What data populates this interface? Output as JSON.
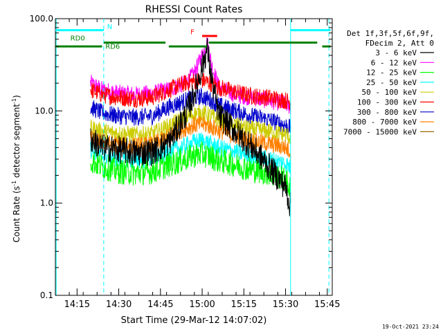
{
  "chart_data": {
    "type": "line",
    "title": "RHESSI Count Rates",
    "xlabel": "Start Time (29-Mar-12 14:07:02)",
    "ylabel_main": "Count Rate (s",
    "ylabel_sup1": "-1",
    "ylabel_mid": " detector segment",
    "ylabel_sup2": "-1",
    "ylabel_end": ")",
    "y_scale": "log",
    "ylim": [
      0.1,
      100
    ],
    "y_ticks": [
      {
        "value": 100,
        "label": "100.0"
      },
      {
        "value": 10,
        "label": "10.0"
      },
      {
        "value": 1,
        "label": "1.0"
      },
      {
        "value": 0.1,
        "label": "0.1"
      }
    ],
    "xlim_minutes": [
      14.12,
      15.78
    ],
    "x_ticks": [
      {
        "value": 14.25,
        "label": "14:15"
      },
      {
        "value": 14.5,
        "label": "14:30"
      },
      {
        "value": 14.75,
        "label": "14:45"
      },
      {
        "value": 15.0,
        "label": "15:00"
      },
      {
        "value": 15.25,
        "label": "15:15"
      },
      {
        "value": 15.5,
        "label": "15:30"
      },
      {
        "value": 15.75,
        "label": "15:45"
      }
    ],
    "legend_header_1": "Det 1f,3f,5f,6f,9f,",
    "legend_header_2": "FDecim 2, Att 0",
    "legend_placement": "right",
    "series": [
      {
        "name": "3 - 6 keV",
        "color": "#000000",
        "x": [
          14.33,
          14.4,
          14.5,
          14.6,
          14.7,
          14.8,
          14.9,
          14.95,
          15.0,
          15.03,
          15.06,
          15.1,
          15.2,
          15.3,
          15.4,
          15.5,
          15.53
        ],
        "y": [
          5.0,
          4.0,
          3.8,
          3.5,
          3.6,
          4.5,
          9.0,
          15.0,
          30.0,
          48.0,
          20.0,
          9.0,
          6.0,
          4.0,
          2.5,
          1.5,
          0.9
        ]
      },
      {
        "name": "6 - 12 keV",
        "color": "#ff00ff",
        "x": [
          14.33,
          14.4,
          14.5,
          14.6,
          14.7,
          14.8,
          14.9,
          14.95,
          15.0,
          15.03,
          15.06,
          15.1,
          15.2,
          15.3,
          15.4,
          15.5,
          15.53
        ],
        "y": [
          20.0,
          17.0,
          15.5,
          15.0,
          15.5,
          17.0,
          20.0,
          25.0,
          40.0,
          55.0,
          30.0,
          18.0,
          15.0,
          14.0,
          13.0,
          12.0,
          11.0
        ]
      },
      {
        "name": "12 - 25 keV",
        "color": "#00ff00",
        "x": [
          14.33,
          14.4,
          14.5,
          14.6,
          14.7,
          14.8,
          14.9,
          14.95,
          15.0,
          15.05,
          15.1,
          15.2,
          15.3,
          15.4,
          15.5,
          15.53
        ],
        "y": [
          2.9,
          2.5,
          2.2,
          2.1,
          2.2,
          2.6,
          3.0,
          3.3,
          3.4,
          3.2,
          2.9,
          2.6,
          2.3,
          2.1,
          1.8,
          1.4
        ]
      },
      {
        "name": "25 - 50 keV",
        "color": "#00ffff",
        "x": [
          14.33,
          14.4,
          14.5,
          14.6,
          14.7,
          14.8,
          14.9,
          14.95,
          15.0,
          15.05,
          15.1,
          15.2,
          15.3,
          15.4,
          15.5,
          15.53
        ],
        "y": [
          3.8,
          3.3,
          3.0,
          2.9,
          3.0,
          3.6,
          4.2,
          4.6,
          4.8,
          4.4,
          4.0,
          3.6,
          3.2,
          3.0,
          2.7,
          2.4
        ]
      },
      {
        "name": "50 - 100 keV",
        "color": "#cccc00",
        "x": [
          14.33,
          14.4,
          14.5,
          14.6,
          14.7,
          14.8,
          14.9,
          14.95,
          15.0,
          15.05,
          15.1,
          15.2,
          15.3,
          15.4,
          15.5,
          15.53
        ],
        "y": [
          6.5,
          6.0,
          5.7,
          5.5,
          5.6,
          6.8,
          8.5,
          9.2,
          9.5,
          8.8,
          8.0,
          7.0,
          6.3,
          6.0,
          5.5,
          5.2
        ]
      },
      {
        "name": "100 - 300 keV",
        "color": "#ff0000",
        "x": [
          14.33,
          14.4,
          14.5,
          14.6,
          14.7,
          14.8,
          14.9,
          14.95,
          15.0,
          15.05,
          15.1,
          15.2,
          15.3,
          15.4,
          15.5,
          15.53
        ],
        "y": [
          17.0,
          15.0,
          14.0,
          13.5,
          14.0,
          17.0,
          20.0,
          21.0,
          21.5,
          20.0,
          18.0,
          16.0,
          14.5,
          14.0,
          13.0,
          12.5
        ]
      },
      {
        "name": "300 - 800 keV",
        "color": "#0000cc",
        "x": [
          14.33,
          14.4,
          14.5,
          14.6,
          14.7,
          14.8,
          14.9,
          14.95,
          15.0,
          15.05,
          15.1,
          15.2,
          15.3,
          15.4,
          15.5,
          15.53
        ],
        "y": [
          11.0,
          9.5,
          8.8,
          8.5,
          8.8,
          11.0,
          13.0,
          14.0,
          14.3,
          13.0,
          11.5,
          10.0,
          8.8,
          8.0,
          7.0,
          6.5
        ]
      },
      {
        "name": "800 - 7000 keV",
        "color": "#ff8000",
        "x": [
          14.33,
          14.4,
          14.5,
          14.6,
          14.7,
          14.8,
          14.9,
          14.95,
          15.0,
          15.05,
          15.1,
          15.2,
          15.3,
          15.4,
          15.5,
          15.53
        ],
        "y": [
          5.0,
          4.5,
          4.3,
          4.2,
          4.3,
          5.3,
          6.5,
          7.0,
          7.2,
          6.8,
          6.1,
          5.3,
          4.7,
          4.4,
          4.0,
          3.6
        ]
      },
      {
        "name": "7000 - 15000 keV",
        "color": "#996600",
        "x": [],
        "y": []
      }
    ],
    "attenuator_segments": [
      {
        "y": 75,
        "color": "#00ffff",
        "x": [
          14.12,
          14.41
        ]
      },
      {
        "y": 75,
        "color": "#00ffff",
        "x": [
          15.53,
          15.77
        ]
      }
    ],
    "rd_segments": [
      {
        "y": 50,
        "color": "#008000",
        "x": [
          14.12,
          14.4
        ]
      },
      {
        "y": 55,
        "color": "#008000",
        "x": [
          14.41,
          14.78
        ]
      },
      {
        "y": 50,
        "color": "#008000",
        "x": [
          14.8,
          15.03
        ]
      },
      {
        "y": 55,
        "color": "#008000",
        "x": [
          15.04,
          15.69
        ]
      },
      {
        "y": 50,
        "color": "#008000",
        "x": [
          15.72,
          15.77
        ]
      }
    ],
    "flare_segment": {
      "y": 65,
      "color": "#ff0000",
      "x": [
        15.0,
        15.09
      ]
    },
    "vlines": [
      {
        "x": 14.125,
        "color": "#00ffff",
        "style": "solid"
      },
      {
        "x": 14.41,
        "color": "#00ffff",
        "style": "dashed"
      },
      {
        "x": 15.53,
        "color": "#00ffff",
        "style": "solid"
      },
      {
        "x": 15.76,
        "color": "#00ffff",
        "style": "dashed"
      }
    ],
    "annotations": [
      {
        "text": "N",
        "color": "#00ffff",
        "x": 14.43,
        "y": 77
      },
      {
        "text": "RD0",
        "color": "#008000",
        "x": 14.21,
        "y": 58
      },
      {
        "text": "RD6",
        "color": "#008000",
        "x": 14.42,
        "y": 47
      },
      {
        "text": "F",
        "color": "#ff0000",
        "x": 14.93,
        "y": 68
      }
    ]
  },
  "footer_timestamp": "19-Oct-2021 23:24"
}
